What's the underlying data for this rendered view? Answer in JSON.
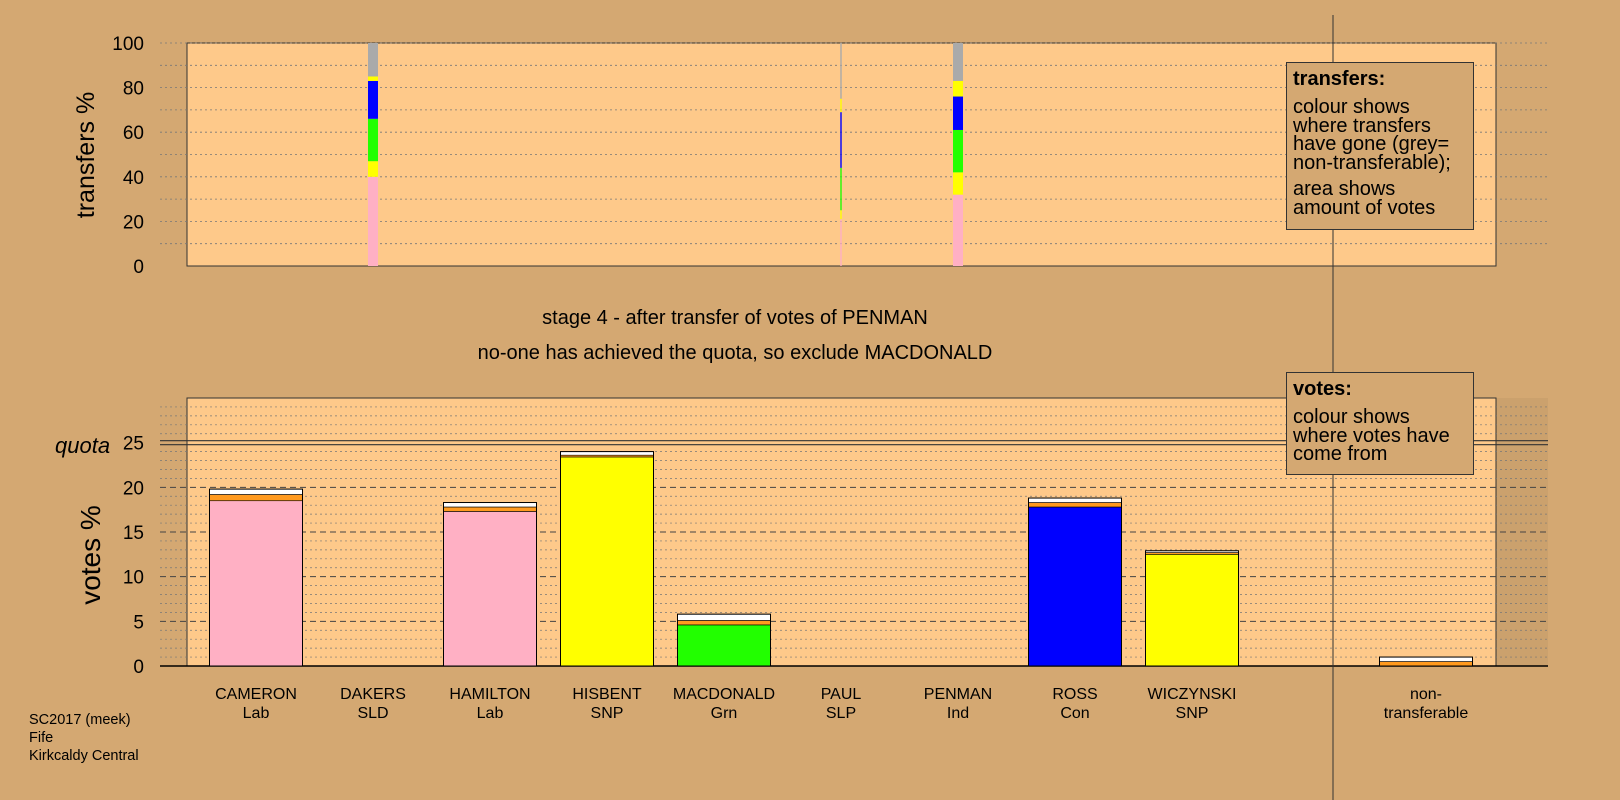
{
  "stage_title": "stage 4 - after transfer of votes of PENMAN",
  "stage_subtitle": "no-one has achieved the quota, so exclude MACDONALD",
  "footer": {
    "line1": "SC2017 (meek)",
    "line2": "Fife",
    "line3": "Kirkcaldy Central"
  },
  "legend_transfers": {
    "title": "transfers:",
    "p1": "colour shows where transfers have gone (grey= non-transferable);",
    "p2": "area shows amount of votes"
  },
  "legend_votes": {
    "title": "votes:",
    "p1": "colour shows where votes have come from"
  },
  "colors": {
    "background": "#d4a872",
    "plot_bg": "#fec98a",
    "Lab": "#ffb0c4",
    "SNP": "#ffff00",
    "Grn": "#22ff00",
    "Con": "#0000ff",
    "Ind_transfer": "#ff9a1f",
    "non_transferable": "#aaaaaa",
    "new_transfer": "#ffffff"
  },
  "chart_data": [
    {
      "type": "bar",
      "ylabel": "transfers %",
      "ylim": [
        0,
        100
      ],
      "yticks": [
        0,
        20,
        40,
        60,
        80,
        100
      ],
      "note": "stacked transfer bars",
      "bars": [
        {
          "category": "DAKERS SLD",
          "width": "wide",
          "segments": [
            {
              "party": "Lab",
              "color": "#ffb0c4",
              "from": 0,
              "to": 40
            },
            {
              "party": "SNP",
              "color": "#ffff00",
              "from": 40,
              "to": 47
            },
            {
              "party": "Grn",
              "color": "#22ff00",
              "from": 47,
              "to": 66
            },
            {
              "party": "Con",
              "color": "#0000ff",
              "from": 66,
              "to": 83
            },
            {
              "party": "SNP",
              "color": "#ffff00",
              "from": 83,
              "to": 85
            },
            {
              "party": "non-transferable",
              "color": "#aaaaaa",
              "from": 85,
              "to": 100
            }
          ]
        },
        {
          "category": "PAUL SLP",
          "width": "thin",
          "segments": [
            {
              "party": "Lab",
              "color": "#ffb0c4",
              "from": 0,
              "to": 21
            },
            {
              "party": "SNP",
              "color": "#ffff00",
              "from": 21,
              "to": 25
            },
            {
              "party": "Grn",
              "color": "#22ff00",
              "from": 25,
              "to": 44
            },
            {
              "party": "Con",
              "color": "#0000ff",
              "from": 44,
              "to": 69
            },
            {
              "party": "SNP",
              "color": "#ffff00",
              "from": 69,
              "to": 75
            },
            {
              "party": "non-transferable",
              "color": "#aaaaaa",
              "from": 75,
              "to": 100
            }
          ]
        },
        {
          "category": "PENMAN Ind",
          "width": "wide",
          "segments": [
            {
              "party": "Lab",
              "color": "#ffb0c4",
              "from": 0,
              "to": 32
            },
            {
              "party": "SNP",
              "color": "#ffff00",
              "from": 32,
              "to": 42
            },
            {
              "party": "Grn",
              "color": "#22ff00",
              "from": 42,
              "to": 61
            },
            {
              "party": "Con",
              "color": "#0000ff",
              "from": 61,
              "to": 76
            },
            {
              "party": "SNP",
              "color": "#ffff00",
              "from": 76,
              "to": 83
            },
            {
              "party": "non-transferable",
              "color": "#aaaaaa",
              "from": 83,
              "to": 100
            }
          ]
        }
      ]
    },
    {
      "type": "bar",
      "ylabel": "votes %",
      "ylim": [
        0,
        30
      ],
      "yticks": [
        0,
        5,
        10,
        15,
        20,
        25
      ],
      "quota": 25,
      "quota_label": "quota",
      "categories": [
        {
          "name": "CAMERON",
          "party": "Lab"
        },
        {
          "name": "DAKERS",
          "party": "SLD"
        },
        {
          "name": "HAMILTON",
          "party": "Lab"
        },
        {
          "name": "HISBENT",
          "party": "SNP"
        },
        {
          "name": "MACDONALD",
          "party": "Grn"
        },
        {
          "name": "PAUL",
          "party": "SLP"
        },
        {
          "name": "PENMAN",
          "party": "Ind"
        },
        {
          "name": "ROSS",
          "party": "Con"
        },
        {
          "name": "WICZYNSKI",
          "party": "SNP"
        }
      ],
      "nontransferable_label": "non-\ntransferable",
      "bars": [
        {
          "category": "CAMERON",
          "segments": [
            {
              "source": "first preferences",
              "color": "#ffb0c4",
              "from": 0,
              "to": 18.5
            },
            {
              "source": "earlier transfers",
              "color": "#ff9a1f",
              "from": 18.5,
              "to": 19.2
            },
            {
              "source": "this stage",
              "color": "#ffffff",
              "from": 19.2,
              "to": 19.8
            }
          ]
        },
        {
          "category": "DAKERS",
          "segments": []
        },
        {
          "category": "HAMILTON",
          "segments": [
            {
              "source": "first preferences",
              "color": "#ffb0c4",
              "from": 0,
              "to": 17.3
            },
            {
              "source": "earlier transfers",
              "color": "#ff9a1f",
              "from": 17.3,
              "to": 17.8
            },
            {
              "source": "this stage",
              "color": "#ffffff",
              "from": 17.8,
              "to": 18.3
            }
          ]
        },
        {
          "category": "HISBENT",
          "segments": [
            {
              "source": "first preferences",
              "color": "#ffff00",
              "from": 0,
              "to": 23.4
            },
            {
              "source": "earlier transfers",
              "color": "#ff9a1f",
              "from": 23.4,
              "to": 23.6
            },
            {
              "source": "this stage",
              "color": "#ffffff",
              "from": 23.6,
              "to": 24.0
            }
          ]
        },
        {
          "category": "MACDONALD",
          "segments": [
            {
              "source": "first preferences",
              "color": "#22ff00",
              "from": 0,
              "to": 4.6
            },
            {
              "source": "earlier transfers",
              "color": "#ff9a1f",
              "from": 4.6,
              "to": 5.1
            },
            {
              "source": "this stage",
              "color": "#ffffff",
              "from": 5.1,
              "to": 5.8
            }
          ]
        },
        {
          "category": "PAUL",
          "segments": []
        },
        {
          "category": "PENMAN",
          "segments": []
        },
        {
          "category": "ROSS",
          "segments": [
            {
              "source": "first preferences",
              "color": "#0000ff",
              "from": 0,
              "to": 17.8
            },
            {
              "source": "earlier transfers",
              "color": "#ff9a1f",
              "from": 17.8,
              "to": 18.3
            },
            {
              "source": "this stage",
              "color": "#ffffff",
              "from": 18.3,
              "to": 18.8
            }
          ]
        },
        {
          "category": "WICZYNSKI",
          "segments": [
            {
              "source": "first preferences",
              "color": "#ffff00",
              "from": 0,
              "to": 12.5
            },
            {
              "source": "earlier transfers",
              "color": "#ff9a1f",
              "from": 12.5,
              "to": 12.7
            },
            {
              "source": "this stage",
              "color": "#ffffff",
              "from": 12.7,
              "to": 12.9
            }
          ]
        },
        {
          "category": "non-transferable",
          "segments": [
            {
              "source": "earlier transfers",
              "color": "#ff9a1f",
              "from": 0,
              "to": 0.5
            },
            {
              "source": "this stage",
              "color": "#ffffff",
              "from": 0.5,
              "to": 1.0
            }
          ]
        }
      ]
    }
  ]
}
